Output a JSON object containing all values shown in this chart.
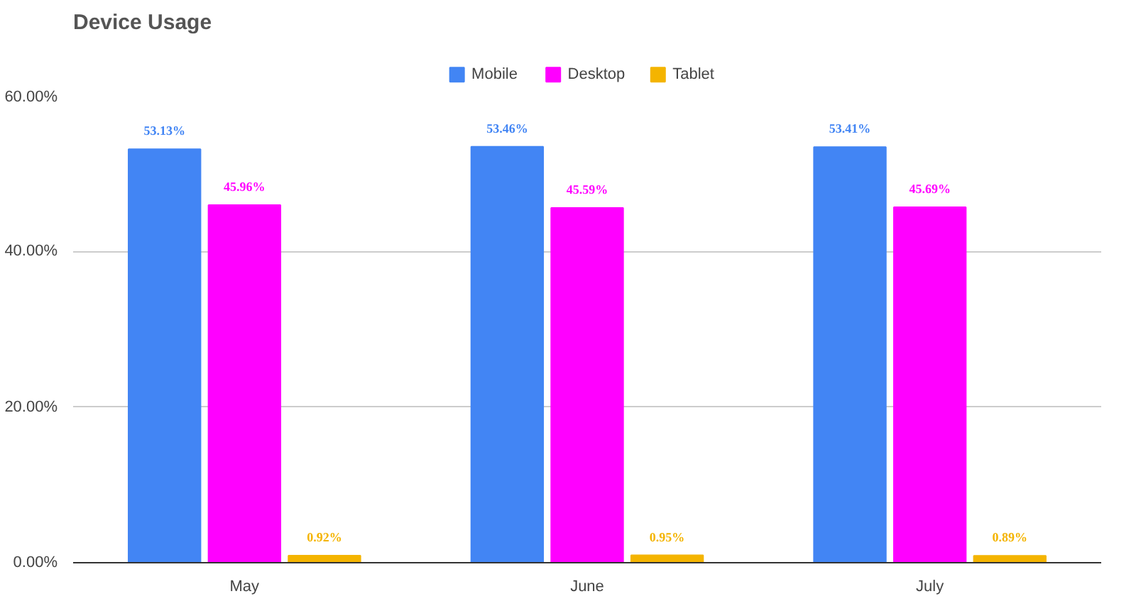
{
  "chart_data": {
    "type": "bar",
    "title": "Device Usage",
    "categories": [
      "May",
      "June",
      "July"
    ],
    "series": [
      {
        "name": "Mobile",
        "color": "#4285f4",
        "values": [
          53.13,
          53.46,
          53.41
        ],
        "value_labels": [
          "53.13%",
          "53.46%",
          "53.41%"
        ]
      },
      {
        "name": "Desktop",
        "color": "#ff00ff",
        "values": [
          45.96,
          45.59,
          45.69
        ],
        "value_labels": [
          "45.96%",
          "45.59%",
          "45.69%"
        ]
      },
      {
        "name": "Tablet",
        "color": "#f4b400",
        "values": [
          0.92,
          0.95,
          0.89
        ],
        "value_labels": [
          "0.92%",
          "0.95%",
          "0.89%"
        ]
      }
    ],
    "ylim": [
      0,
      60
    ],
    "yticks": [
      {
        "value": 0,
        "label": "0.00%"
      },
      {
        "value": 20,
        "label": "20.00%"
      },
      {
        "value": 40,
        "label": "40.00%"
      },
      {
        "value": 60,
        "label": "60.00%"
      }
    ],
    "grid": "y",
    "legend": "top"
  }
}
